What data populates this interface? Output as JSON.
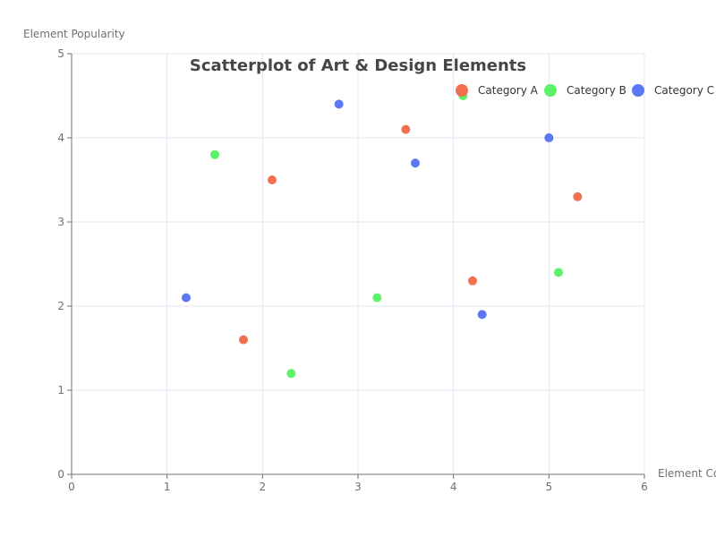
{
  "chart_data": {
    "type": "scatter",
    "title": "Scatterplot of Art & Design Elements",
    "xlabel": "Element Co",
    "ylabel": "Element Popularity",
    "xlim": [
      0,
      6
    ],
    "ylim": [
      0,
      5
    ],
    "x_ticks": [
      "0",
      "1",
      "2",
      "3",
      "4",
      "5",
      "6"
    ],
    "y_ticks": [
      "0",
      "1",
      "2",
      "3",
      "4",
      "5"
    ],
    "grid": true,
    "legend_position": "top-right",
    "series": [
      {
        "name": "Category A",
        "color": "#f2704f",
        "points": [
          [
            1.8,
            1.6
          ],
          [
            2.1,
            3.5
          ],
          [
            3.5,
            4.1
          ],
          [
            4.2,
            2.3
          ],
          [
            5.3,
            3.3
          ]
        ]
      },
      {
        "name": "Category B",
        "color": "#5df26a",
        "points": [
          [
            1.5,
            3.8
          ],
          [
            2.3,
            1.2
          ],
          [
            3.2,
            2.1
          ],
          [
            4.1,
            4.5
          ],
          [
            5.1,
            2.4
          ]
        ]
      },
      {
        "name": "Category C",
        "color": "#5b78f2",
        "points": [
          [
            1.2,
            2.1
          ],
          [
            2.8,
            4.4
          ],
          [
            3.6,
            3.7
          ],
          [
            4.3,
            1.9
          ],
          [
            5.0,
            4.0
          ]
        ]
      }
    ]
  }
}
